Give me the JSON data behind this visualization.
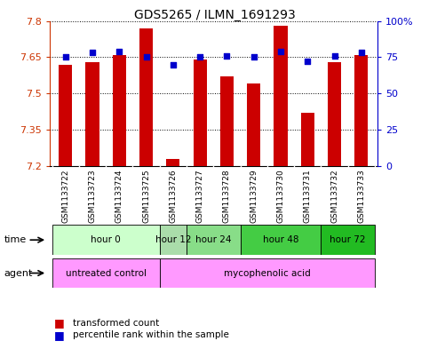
{
  "title": "GDS5265 / ILMN_1691293",
  "samples": [
    "GSM1133722",
    "GSM1133723",
    "GSM1133724",
    "GSM1133725",
    "GSM1133726",
    "GSM1133727",
    "GSM1133728",
    "GSM1133729",
    "GSM1133730",
    "GSM1133731",
    "GSM1133732",
    "GSM1133733"
  ],
  "transformed_count": [
    7.62,
    7.63,
    7.66,
    7.77,
    7.23,
    7.64,
    7.57,
    7.54,
    7.78,
    7.42,
    7.63,
    7.66
  ],
  "percentile_rank": [
    75,
    78,
    79,
    75,
    70,
    75,
    76,
    75,
    79,
    72,
    76,
    78
  ],
  "ylim_left": [
    7.2,
    7.8
  ],
  "yticks_left": [
    7.2,
    7.35,
    7.5,
    7.65,
    7.8
  ],
  "ylim_right": [
    0,
    100
  ],
  "yticks_right": [
    0,
    25,
    50,
    75,
    100
  ],
  "yticklabels_right": [
    "0",
    "25",
    "50",
    "75",
    "100%"
  ],
  "bar_color": "#cc0000",
  "dot_color": "#0000cc",
  "bar_bottom": 7.2,
  "time_groups": [
    {
      "label": "hour 0",
      "start": 0,
      "end": 3,
      "color": "#ccffcc"
    },
    {
      "label": "hour 12",
      "start": 4,
      "end": 4,
      "color": "#aaddaa"
    },
    {
      "label": "hour 24",
      "start": 5,
      "end": 6,
      "color": "#88dd88"
    },
    {
      "label": "hour 48",
      "start": 7,
      "end": 9,
      "color": "#44cc44"
    },
    {
      "label": "hour 72",
      "start": 10,
      "end": 11,
      "color": "#22bb22"
    }
  ],
  "agent_groups": [
    {
      "label": "untreated control",
      "start": 0,
      "end": 3,
      "color": "#ff99ff"
    },
    {
      "label": "mycophenolic acid",
      "start": 4,
      "end": 11,
      "color": "#ff99ff"
    }
  ],
  "tick_color_left": "#cc3300",
  "tick_color_right": "#0000cc",
  "grid_color": "#000000",
  "background_color": "#ffffff",
  "bar_width": 0.5,
  "gsm_bg_color": "#cccccc",
  "n_samples": 12
}
